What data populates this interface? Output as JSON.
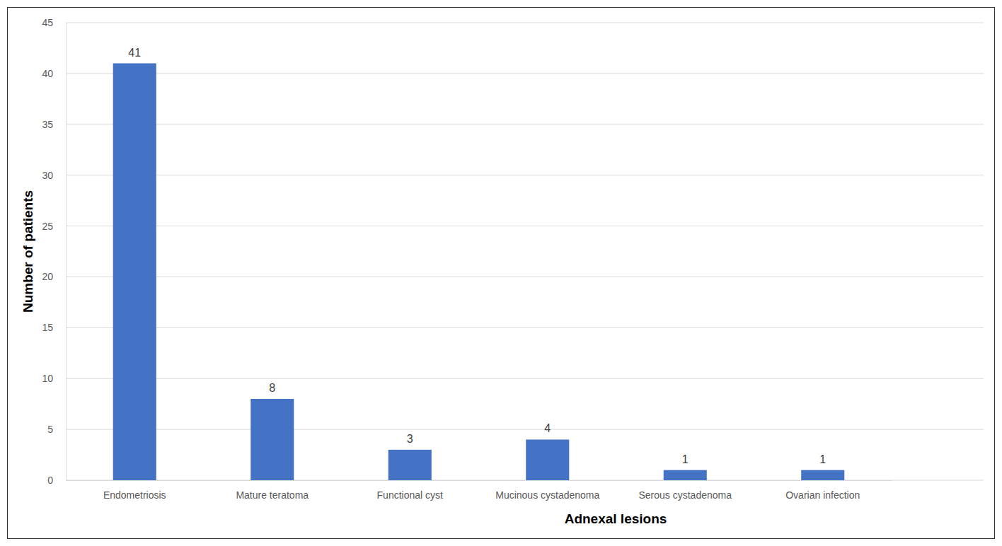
{
  "chart_data": {
    "type": "bar",
    "x_label": "Adnexal lesions",
    "y_label": "Number of patients",
    "categories": [
      "Endometriosis",
      "Mature teratoma",
      "Functional cyst",
      "Mucinous cystadenoma",
      "Serous cystadenoma",
      "Ovarian infection"
    ],
    "values": [
      41,
      8,
      3,
      4,
      1,
      1
    ],
    "color": "#4472c4",
    "ylim": [
      0,
      45
    ],
    "yticks": [
      0,
      5,
      10,
      15,
      20,
      25,
      30,
      35,
      40,
      45
    ],
    "grid": true,
    "data_labels": true
  }
}
